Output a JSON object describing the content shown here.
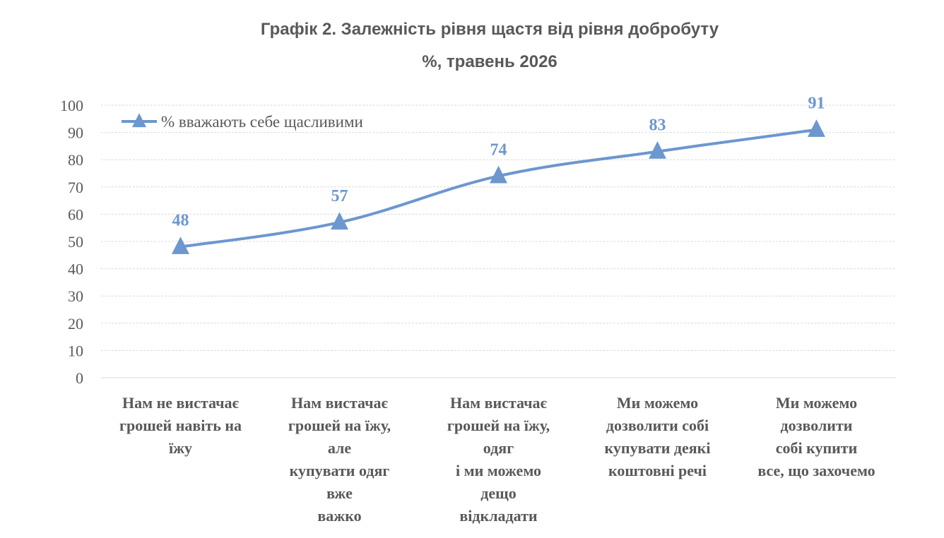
{
  "title_line1": "Графік 2. Залежність рівня щастя від рівня добробуту",
  "title_line2": "%,  травень 2026",
  "chart_data": {
    "type": "line",
    "categories": [
      [
        "Нам не вистачає",
        "грошей навіть  на",
        "їжу"
      ],
      [
        "Нам вистачає",
        "грошей на їжу,",
        "але",
        "купувати одяг",
        "вже",
        "важко"
      ],
      [
        "Нам вистачає",
        "грошей на їжу,",
        "одяг",
        "і ми можемо",
        "дещо",
        "відкладати"
      ],
      [
        "Ми можемо",
        "дозволити собі",
        "купувати деякі",
        "коштовні речі"
      ],
      [
        "Ми можемо",
        "дозволити",
        "собі купити",
        "все, що захочемо"
      ]
    ],
    "series": [
      {
        "name": "% вважають себе щасливими",
        "values": [
          48,
          57,
          74,
          83,
          91
        ],
        "color": "#6c97cf"
      }
    ],
    "ylim": [
      0,
      100
    ],
    "yticks": [
      0,
      10,
      20,
      30,
      40,
      50,
      60,
      70,
      80,
      90,
      100
    ],
    "grid": true,
    "legend_position": "top-left",
    "marker": "triangle",
    "data_labels": true
  }
}
